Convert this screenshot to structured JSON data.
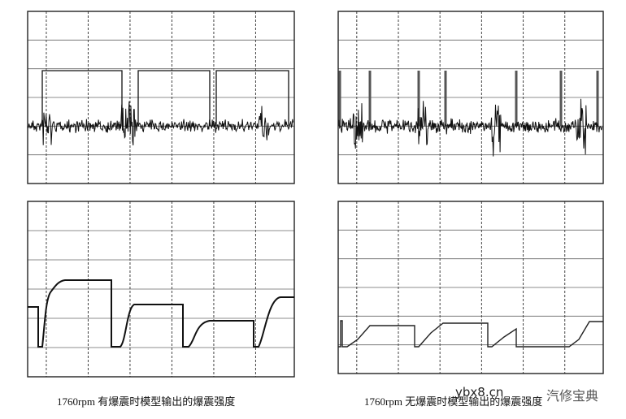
{
  "figure": {
    "captions": [
      "1760rpm 有爆震时模型输出的爆震强度",
      "1760rpm 无爆震时模型输出的爆震强度"
    ],
    "watermark": {
      "site": "ybx8.cn",
      "brand": "汽修宝典"
    }
  }
}
